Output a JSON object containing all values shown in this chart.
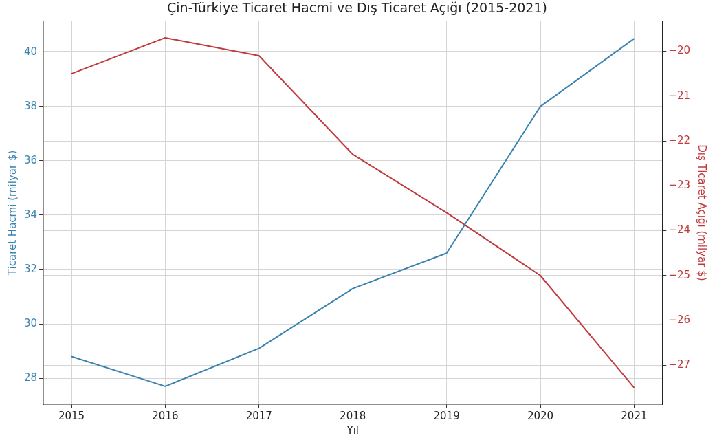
{
  "chart_data": {
    "type": "line",
    "title": "Çin-Türkiye Ticaret Hacmi ve Dış Ticaret Açığı (2015-2021)",
    "xlabel": "Yıl",
    "ylabel": "Ticaret Hacmi (milyar $)",
    "y2label": "Dış Ticaret Açığı (milyar $)",
    "x": [
      2015,
      2016,
      2017,
      2018,
      2019,
      2020,
      2021
    ],
    "series": [
      {
        "color": "#3a82b0",
        "values": [
          28.8,
          27.7,
          29.1,
          31.3,
          32.6,
          38.0,
          40.5
        ]
      },
      {
        "color": "#c0393b",
        "axis": "y2",
        "values": [
          -20.5,
          -19.7,
          -20.1,
          -22.3,
          -23.6,
          -25.0,
          -27.5
        ]
      }
    ],
    "xlim": [
      2014.7,
      2021.3
    ],
    "xticks": [
      2015,
      2016,
      2017,
      2018,
      2019,
      2020,
      2021
    ],
    "ylim": [
      27.04,
      41.14
    ],
    "yticks": [
      28,
      30,
      32,
      34,
      36,
      38,
      40
    ],
    "y2lim": [
      -27.87,
      -19.33
    ],
    "y2ticks": [
      -27,
      -26,
      -25,
      -24,
      -23,
      -22,
      -21,
      -20
    ],
    "grid": true,
    "legend": false,
    "line_style": "solid",
    "marker": "none"
  }
}
